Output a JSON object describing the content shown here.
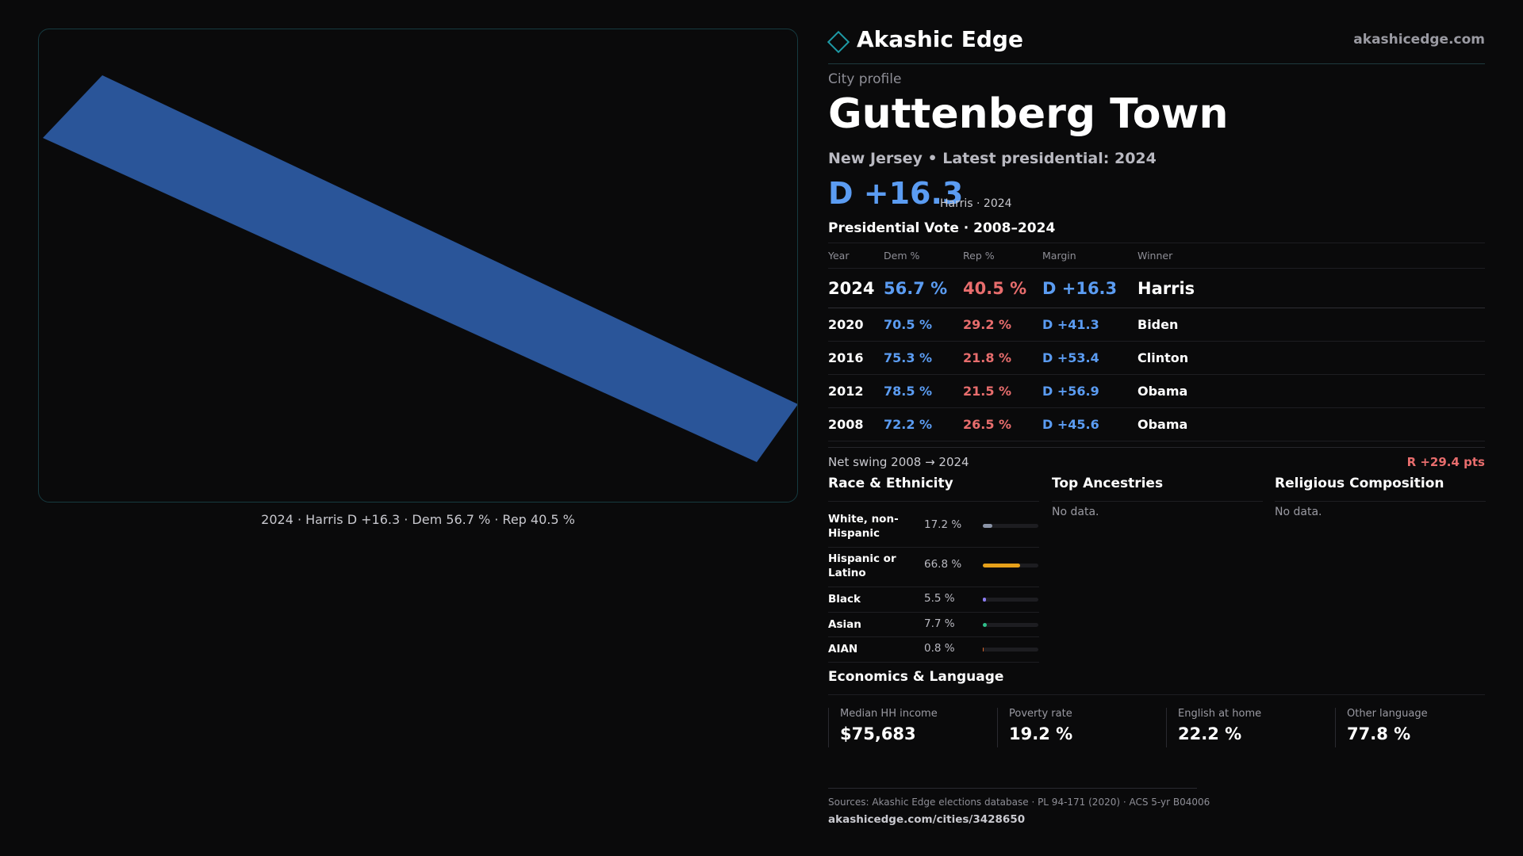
{
  "map": {
    "caption": "2024 · Harris D +16.3 · Dem 56.7 % · Rep 40.5 %",
    "fill_color": "#2a5599"
  },
  "header": {
    "brand_name": "Akashic Edge",
    "brand_url": "akashicedge.com",
    "brand_icon": "diamond-icon"
  },
  "profile": {
    "kicker": "City profile",
    "title": "Guttenberg Town",
    "subtitle": "New Jersey • Latest presidential: 2024",
    "margin": "D +16.3",
    "margin_note": "Harris · 2024"
  },
  "vote": {
    "heading": "Presidential Vote · 2008–2024",
    "columns": [
      "Year",
      "Dem %",
      "Rep %",
      "Margin",
      "Winner"
    ],
    "rows": [
      {
        "year": "2024",
        "dem": "56.7 %",
        "rep": "40.5 %",
        "margin": "D +16.3",
        "winner": "Harris"
      },
      {
        "year": "2020",
        "dem": "70.5 %",
        "rep": "29.2 %",
        "margin": "D +41.3",
        "winner": "Biden"
      },
      {
        "year": "2016",
        "dem": "75.3 %",
        "rep": "21.8 %",
        "margin": "D +53.4",
        "winner": "Clinton"
      },
      {
        "year": "2012",
        "dem": "78.5 %",
        "rep": "21.5 %",
        "margin": "D +56.9",
        "winner": "Obama"
      },
      {
        "year": "2008",
        "dem": "72.2 %",
        "rep": "26.5 %",
        "margin": "D +45.6",
        "winner": "Obama"
      }
    ],
    "swing_label": "Net swing 2008 → 2024",
    "swing_value": "R +29.4 pts"
  },
  "race": {
    "heading": "Race & Ethnicity",
    "items": [
      {
        "label": "White, non-Hispanic",
        "pct": "17.2 %",
        "value": 17.2,
        "color": "#8a93a6"
      },
      {
        "label": "Hispanic or Latino",
        "pct": "66.8 %",
        "value": 66.8,
        "color": "#e6a01a"
      },
      {
        "label": "Black",
        "pct": "5.5 %",
        "value": 5.5,
        "color": "#8b7cf0"
      },
      {
        "label": "Asian",
        "pct": "7.7 %",
        "value": 7.7,
        "color": "#2fbf8a"
      },
      {
        "label": "AIAN",
        "pct": "0.8 %",
        "value": 0.8,
        "color": "#d9662c"
      }
    ]
  },
  "ancestries": {
    "heading": "Top Ancestries",
    "empty": "No data."
  },
  "religion": {
    "heading": "Religious Composition",
    "empty": "No data."
  },
  "economics": {
    "heading": "Economics & Language",
    "stats": [
      {
        "label": "Median HH income",
        "value": "$75,683"
      },
      {
        "label": "Poverty rate",
        "value": "19.2 %"
      },
      {
        "label": "English at home",
        "value": "22.2 %"
      },
      {
        "label": "Other language",
        "value": "77.8 %"
      }
    ]
  },
  "footer": {
    "sources": "Sources: Akashic Edge elections database · PL 94-171 (2020) · ACS 5-yr B04006",
    "link": "akashicedge.com/cities/3428650"
  }
}
